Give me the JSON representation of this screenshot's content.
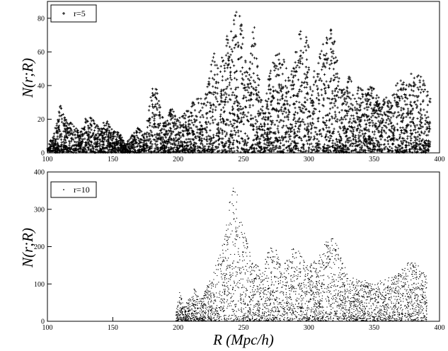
{
  "chart_data": [
    {
      "type": "scatter",
      "ylabel": "N(r;R)",
      "xlabel": "",
      "xlim": [
        100,
        400
      ],
      "ylim": [
        0,
        90
      ],
      "x_ticks": [
        100,
        150,
        200,
        250,
        300,
        350,
        400
      ],
      "y_ticks": [
        0,
        20,
        40,
        60,
        80
      ],
      "legend": {
        "label": "r=5",
        "position": "top-left",
        "marker": "plus"
      },
      "point_color": "#000000",
      "marker_size": 1.7,
      "envelope": {
        "description_free": true,
        "R": [
          100,
          105,
          110,
          113,
          118,
          125,
          130,
          135,
          140,
          145,
          150,
          155,
          160,
          165,
          170,
          175,
          180,
          183,
          186,
          190,
          195,
          200,
          205,
          210,
          215,
          220,
          225,
          228,
          232,
          236,
          240,
          243,
          246,
          248,
          251,
          254,
          257,
          259,
          262,
          266,
          270,
          274,
          278,
          281,
          285,
          289,
          293,
          296,
          299,
          302,
          305,
          309,
          313,
          317,
          320,
          324,
          328,
          331,
          335,
          339,
          343,
          347,
          351,
          355,
          359,
          363,
          367,
          371,
          375,
          379,
          383,
          387,
          390,
          393
        ],
        "N_max": [
          3,
          12,
          30,
          22,
          18,
          12,
          22,
          20,
          15,
          20,
          13,
          12,
          5,
          12,
          16,
          12,
          38,
          44,
          30,
          20,
          28,
          20,
          25,
          28,
          38,
          30,
          55,
          60,
          50,
          68,
          72,
          80,
          88,
          82,
          60,
          45,
          80,
          72,
          45,
          25,
          52,
          58,
          60,
          58,
          44,
          58,
          72,
          76,
          72,
          48,
          50,
          62,
          72,
          74,
          66,
          40,
          38,
          48,
          38,
          40,
          35,
          40,
          38,
          30,
          35,
          32,
          42,
          45,
          40,
          50,
          48,
          44,
          40,
          32
        ]
      }
    },
    {
      "type": "scatter",
      "ylabel": "N(r;R)",
      "xlabel": "R (Mpc/h)",
      "xlim": [
        100,
        400
      ],
      "ylim": [
        0,
        400
      ],
      "x_ticks": [
        100,
        150,
        200,
        250,
        300,
        350,
        400
      ],
      "y_ticks": [
        0,
        100,
        200,
        300,
        400
      ],
      "legend": {
        "label": "r=10",
        "position": "top-left",
        "marker": "dot"
      },
      "point_color": "#000000",
      "marker_size": 1.2,
      "envelope": {
        "R": [
          198,
          201,
          204,
          208,
          212,
          216,
          220,
          224,
          228,
          232,
          236,
          239,
          242,
          245,
          248,
          251,
          254,
          257,
          260,
          263,
          267,
          271,
          275,
          279,
          283,
          287,
          291,
          295,
          299,
          303,
          307,
          311,
          315,
          319,
          323,
          327,
          331,
          335,
          339,
          343,
          347,
          351,
          355,
          359,
          363,
          367,
          371,
          375,
          379,
          383,
          387,
          390
        ],
        "N_max": [
          30,
          80,
          40,
          60,
          90,
          60,
          85,
          110,
          150,
          180,
          250,
          330,
          365,
          350,
          280,
          230,
          200,
          150,
          160,
          130,
          180,
          200,
          190,
          140,
          170,
          200,
          190,
          180,
          150,
          160,
          170,
          200,
          230,
          225,
          190,
          150,
          110,
          120,
          105,
          110,
          100,
          100,
          110,
          115,
          120,
          125,
          140,
          155,
          165,
          150,
          140,
          120
        ]
      }
    }
  ]
}
